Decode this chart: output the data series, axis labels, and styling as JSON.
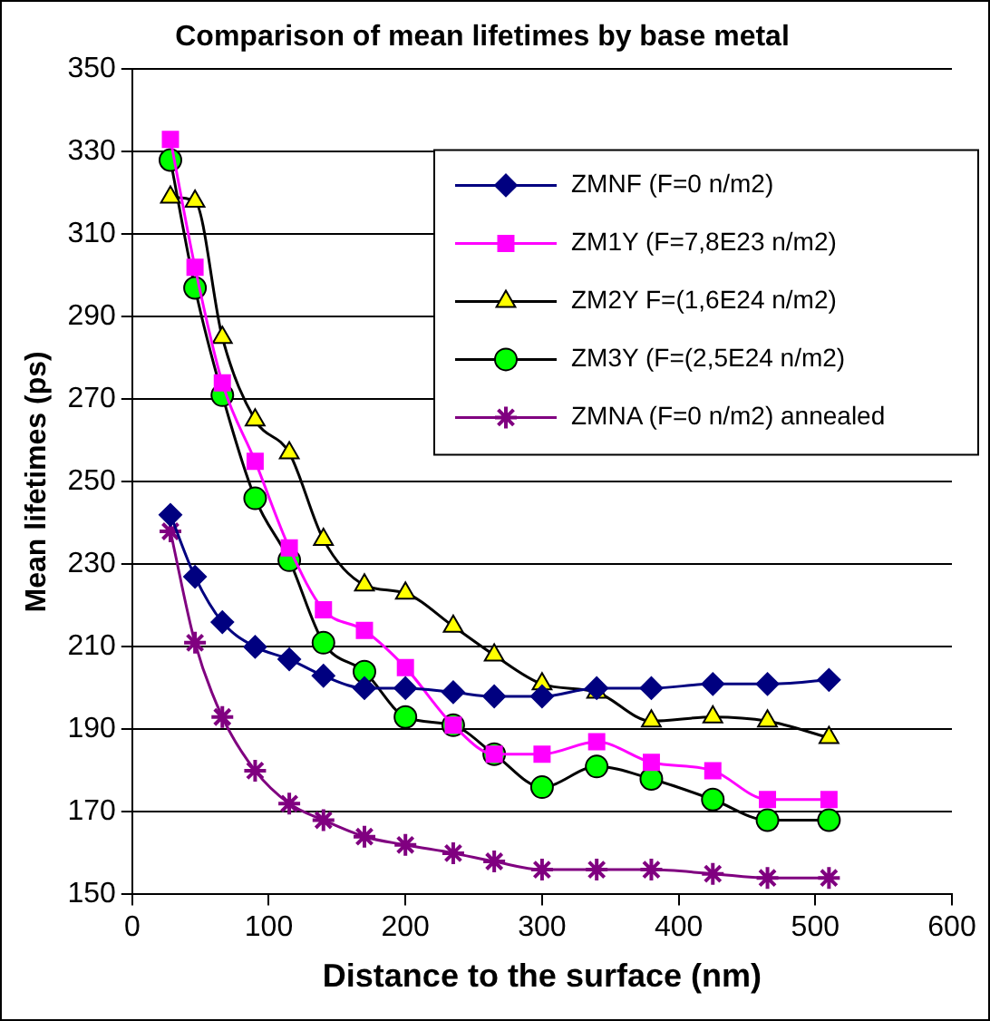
{
  "chart_data": {
    "type": "line",
    "title": "Comparison of mean lifetimes by base metal",
    "xlabel": "Distance to the surface (nm)",
    "ylabel": "Mean lifetimes (ps)",
    "x": [
      28,
      46,
      66,
      90,
      115,
      140,
      170,
      200,
      235,
      265,
      300,
      340,
      380,
      425,
      465,
      510
    ],
    "series": [
      {
        "name": "ZMNF (F=0 n/m2)",
        "color": "#000080",
        "marker": "diamond",
        "values": [
          242,
          227,
          216,
          210,
          207,
          203,
          200,
          200,
          199,
          198,
          198,
          200,
          200,
          201,
          201,
          202
        ]
      },
      {
        "name": "ZM1Y (F=7,8E23 n/m2)",
        "color": "#ff00ff",
        "marker": "square",
        "values": [
          333,
          302,
          274,
          255,
          234,
          219,
          214,
          205,
          191,
          184,
          184,
          187,
          182,
          180,
          173,
          173
        ]
      },
      {
        "name": "ZM2Y F=(1,6E24 n/m2)",
        "color": "#000000",
        "colors": [
          "#ffff00",
          "#ffff00",
          "#ffff00",
          "#ffff00",
          "#ffff00",
          "#ffff00",
          "#ffff00",
          "#ffff00",
          "#ffff00",
          "#ffff00",
          "#ffff00",
          "#ffff00",
          "#ffff00",
          "#ffff00",
          "#ffff00",
          "#ffff00"
        ],
        "marker": "triangle",
        "values": [
          319,
          318,
          285,
          265,
          257,
          236,
          225,
          223,
          215,
          208,
          201,
          199,
          192,
          193,
          192,
          188
        ]
      },
      {
        "name": "ZM3Y (F=(2,5E24 n/m2)",
        "color": "#000000",
        "colors": [
          "#00ff00",
          "#00ff00",
          "#00ff00",
          "#00ff00",
          "#00ff00",
          "#00ff00",
          "#00ff00",
          "#00ff00",
          "#00ff00",
          "#00ff00",
          "#00ff00",
          "#00ff00",
          "#00ff00",
          "#00ff00",
          "#00ff00",
          "#00ff00"
        ],
        "marker": "circle",
        "values": [
          328,
          297,
          271,
          246,
          231,
          211,
          204,
          193,
          191,
          184,
          176,
          181,
          178,
          173,
          168,
          168
        ]
      },
      {
        "name": "ZMNA (F=0 n/m2) annealed",
        "color": "#800080",
        "marker": "cross",
        "values": [
          238,
          211,
          193,
          180,
          172,
          168,
          164,
          162,
          160,
          158,
          156,
          156,
          156,
          155,
          154,
          154
        ]
      }
    ],
    "xlim": [
      0,
      600
    ],
    "xticks": [
      0,
      100,
      200,
      300,
      400,
      500,
      600
    ],
    "ylim": [
      150,
      350
    ],
    "yticks": [
      150,
      170,
      190,
      210,
      230,
      250,
      270,
      290,
      310,
      330,
      350
    ],
    "grid": "y",
    "legend": "top right"
  }
}
